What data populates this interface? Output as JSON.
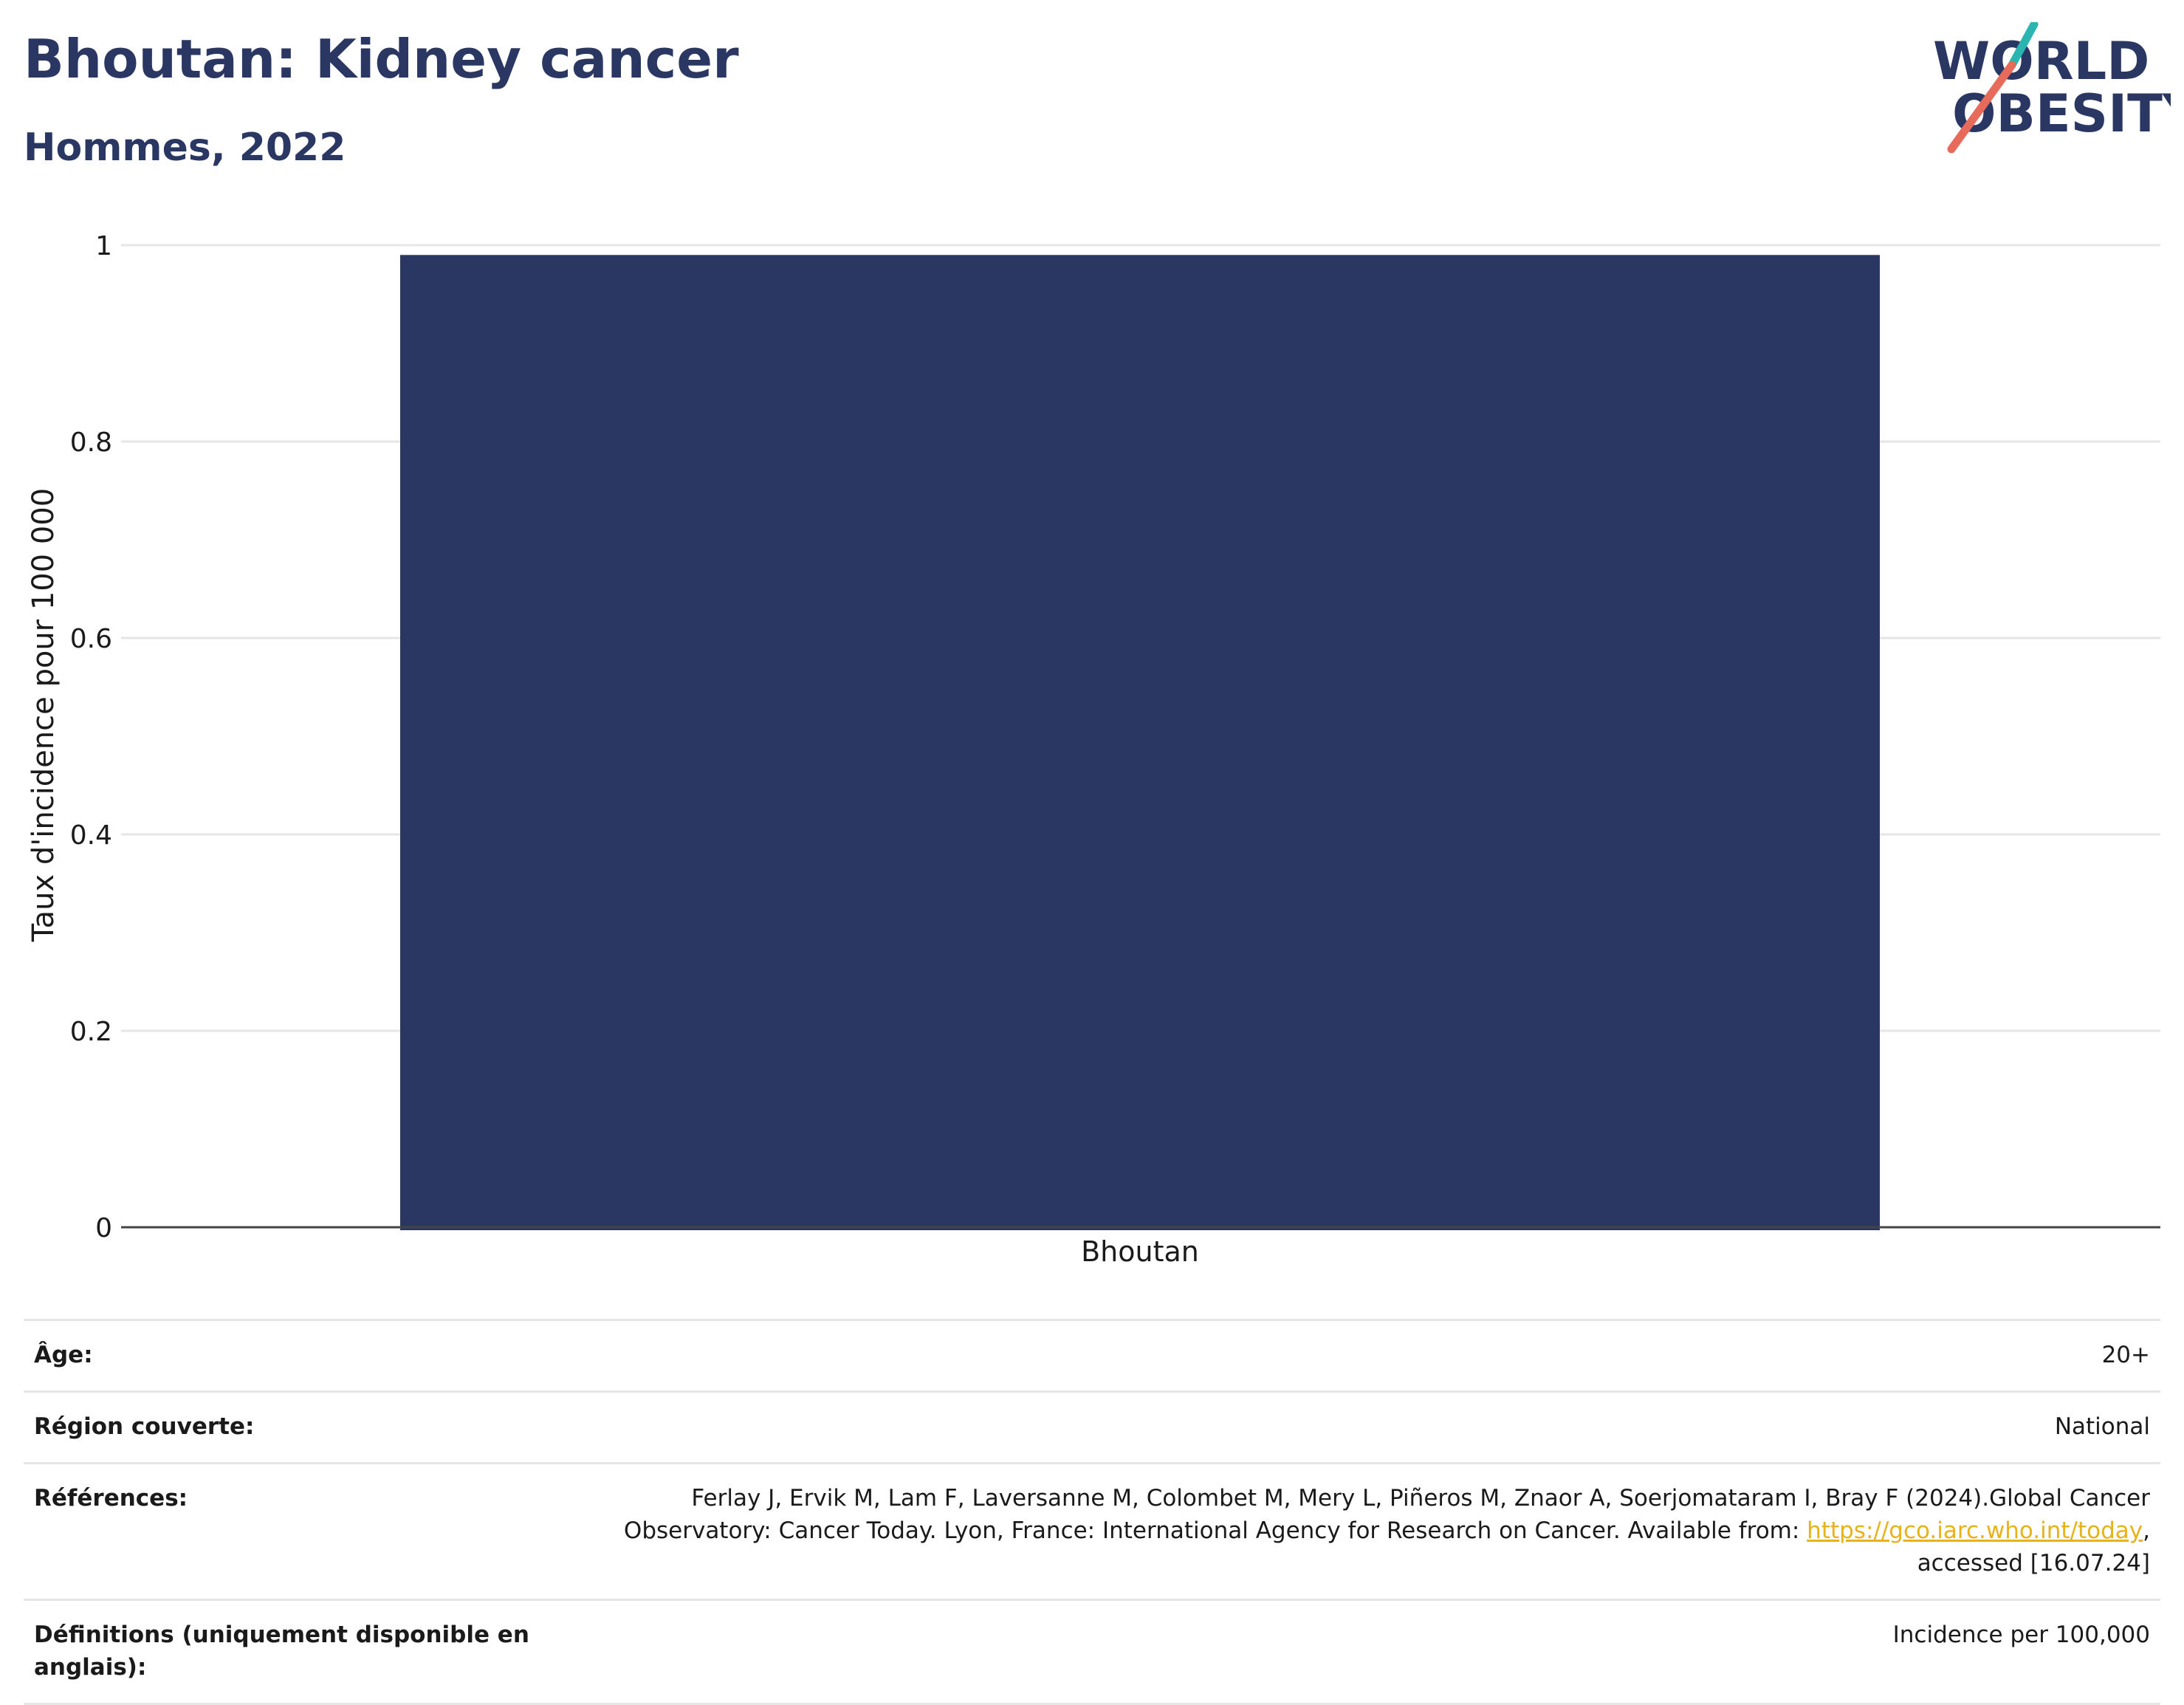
{
  "header": {
    "title": "Bhoutan: Kidney cancer",
    "subtitle": "Hommes, 2022",
    "logo": {
      "line1": "WORLD",
      "line2": "OBESITY",
      "accent_teal": "#2bb5b0",
      "accent_coral": "#e86a5a",
      "text_color": "#2b3763"
    }
  },
  "chart_data": {
    "type": "bar",
    "categories": [
      "Bhoutan"
    ],
    "values": [
      0.99
    ],
    "title": "Bhoutan: Kidney cancer",
    "subtitle": "Hommes, 2022",
    "xlabel": "",
    "ylabel": "Taux d'incidence pour 100 000",
    "ylim": [
      0,
      1
    ],
    "yticks": [
      "0",
      "0.2",
      "0.4",
      "0.6",
      "0.8",
      "1"
    ],
    "grid": true,
    "bar_color": "#2b3763"
  },
  "meta": {
    "age_label": "Âge:",
    "age_value": "20+",
    "region_label": "Région couverte:",
    "region_value": "National",
    "refs_label": "Références:",
    "refs_text_1": "Ferlay J, Ervik M, Lam F, Laversanne M, Colombet M, Mery L, Piñeros M, Znaor A, Soerjomataram I, Bray F (2024).Global Cancer",
    "refs_text_2": "Observatory: Cancer Today. Lyon, France: International Agency for Research on Cancer. Available from: ",
    "refs_link": "https://gco.iarc.who.int/today",
    "refs_text_3": ",",
    "refs_text_4": "accessed [16.07.24]",
    "defs_label": "Définitions (uniquement disponible en anglais):",
    "defs_value": "Incidence per 100,000"
  }
}
